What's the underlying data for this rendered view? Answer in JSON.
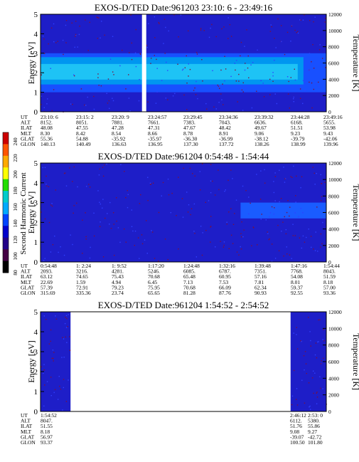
{
  "chart_data": {
    "type": "heatmap",
    "colorbar": {
      "label": "Second Harmonic Current",
      "ticks": [
        "240",
        "220",
        "200",
        "180",
        "160",
        "140",
        "120",
        "100",
        "80"
      ],
      "colors": [
        "#cc0000",
        "#ff5500",
        "#ffaa00",
        "#ffff00",
        "#22dd00",
        "#00cccc",
        "#00aaff",
        "#0044ff",
        "#0000cc",
        "#220088",
        "#440044",
        "#000000"
      ]
    },
    "panels": [
      {
        "title": "EXOS-D/TED  Date:961203  23:10: 6 - 23:49:16",
        "ylabel": "Energy [eV]",
        "y2label": "Temperature [K]",
        "ylim": [
          0,
          5
        ],
        "y2lim": [
          0,
          12000
        ],
        "yticks": [
          "0",
          "1",
          "2",
          "3",
          "4",
          "5"
        ],
        "y2ticks": [
          "0",
          "2000",
          "4000",
          "6000",
          "8000",
          "10000",
          "12000"
        ],
        "data_gaps": [
          [
            0.355,
            0.37
          ]
        ],
        "bands": [
          {
            "x": [
              0,
              1
            ],
            "y": [
              1.0,
              3.0
            ],
            "color": "#1850ff"
          },
          {
            "x": [
              0,
              0.92
            ],
            "y": [
              1.4,
              2.8
            ],
            "color": "#0096f0"
          },
          {
            "x": [
              0,
              0.9
            ],
            "y": [
              1.65,
              2.45
            ],
            "color": "#1ec3f5"
          }
        ],
        "orbit_labels": [
          "UT",
          "ALT",
          "ILAT",
          "MLT",
          "GLAT",
          "GLON"
        ],
        "orbit": [
          [
            "23:10: 6",
            "8152.",
            "48.08",
            "8.30",
            "55.36",
            "140.13"
          ],
          [
            "23:15: 2",
            "8051.",
            "47.55",
            "8.42",
            "54.88",
            "140.49"
          ],
          [
            "23:20: 9",
            "7881.",
            "47.28",
            "8.54",
            "-35.92",
            "136.63"
          ],
          [
            "23:24:57",
            "7661.",
            "47.31",
            "8.66",
            "-35.97",
            "136.95"
          ],
          [
            "23:29:45",
            "7383.",
            "47.67",
            "8.78",
            "-36.30",
            "137.30"
          ],
          [
            "23:34:36",
            "7043.",
            "48.42",
            "8.91",
            "-36.99",
            "137.72"
          ],
          [
            "23:39:32",
            "6636.",
            "49.67",
            "9.06",
            "-38.12",
            "138.26"
          ],
          [
            "23:44:28",
            "6168.",
            "51.51",
            "9.23",
            "-39.79",
            "138.99"
          ],
          [
            "23:49:16",
            "5655.",
            "53.98",
            "9.43",
            "-42.06",
            "139.96"
          ]
        ]
      },
      {
        "title": "EXOS-D/TED  Date:961204  0:54:48 - 1:54:44",
        "ylabel": "Energy [eV]",
        "y2label": "Temperature [K]",
        "ylim": [
          0,
          5
        ],
        "y2lim": [
          0,
          12000
        ],
        "yticks": [
          "0",
          "1",
          "2",
          "3",
          "4",
          "5"
        ],
        "y2ticks": [
          "0",
          "2000",
          "4000",
          "6000",
          "8000",
          "10000",
          "12000"
        ],
        "data_gaps": [],
        "bands": [
          {
            "x": [
              0.7,
              1
            ],
            "y": [
              2.2,
              3.0
            ],
            "color": "#1a5cff"
          }
        ],
        "orbit_labels": [
          "UT",
          "ALT",
          "ILAT",
          "MLT",
          "GLAT",
          "GLON"
        ],
        "orbit": [
          [
            "0:54:48",
            "2093.",
            "63.12",
            "22.69",
            "57.39",
            "315.69"
          ],
          [
            "1: 2:24",
            "3216.",
            "74.65",
            "1.59",
            "72.91",
            "335.36"
          ],
          [
            "1: 9:52",
            "4281.",
            "75.43",
            "4.94",
            "79.23",
            "23.74"
          ],
          [
            "1:17:20",
            "5246.",
            "70.68",
            "6.45",
            "75.95",
            "65.65"
          ],
          [
            "1:24:48",
            "6085.",
            "65.48",
            "7.13",
            "70.68",
            "81.28"
          ],
          [
            "1:32:16",
            "6787.",
            "60.95",
            "7.53",
            "66.09",
            "87.76"
          ],
          [
            "1:39:48",
            "7351.",
            "57.16",
            "7.81",
            "62.34",
            "90.93"
          ],
          [
            "1:47:16",
            "7768.",
            "54.08",
            "8.01",
            "59.37",
            "92.55"
          ],
          [
            "1:54:44",
            "8043.",
            "51.59",
            "8.18",
            "57.00",
            "93.36"
          ]
        ]
      },
      {
        "title": "EXOS-D/TED  Date:961204  1:54:52 - 2:54:52",
        "ylabel": "Energy [eV]",
        "y2label": "Temperature [K]",
        "ylim": [
          0,
          5
        ],
        "y2lim": [
          0,
          12000
        ],
        "yticks": [
          "0",
          "1",
          "2",
          "3",
          "4",
          "5"
        ],
        "y2ticks": [
          "0",
          "2000",
          "4000",
          "6000",
          "8000",
          "10000",
          "12000"
        ],
        "data_segments": [
          [
            0,
            0.105
          ],
          [
            0.875,
            1
          ]
        ],
        "orbit_labels": [
          "UT",
          "ALT",
          "ILAT",
          "MLT",
          "GLAT",
          "GLON"
        ],
        "orbit": [
          [
            "1:54:52",
            "8047.",
            "51.55",
            "8.18",
            "56.97",
            "93.37"
          ],
          [
            "2:46:12",
            "6112.",
            "51.76",
            "9.08",
            "-39.07",
            "100.50"
          ],
          [
            "2:53: 0",
            "5380.",
            "55.86",
            "9.27",
            "-42.72",
            "101.80"
          ]
        ]
      }
    ]
  }
}
